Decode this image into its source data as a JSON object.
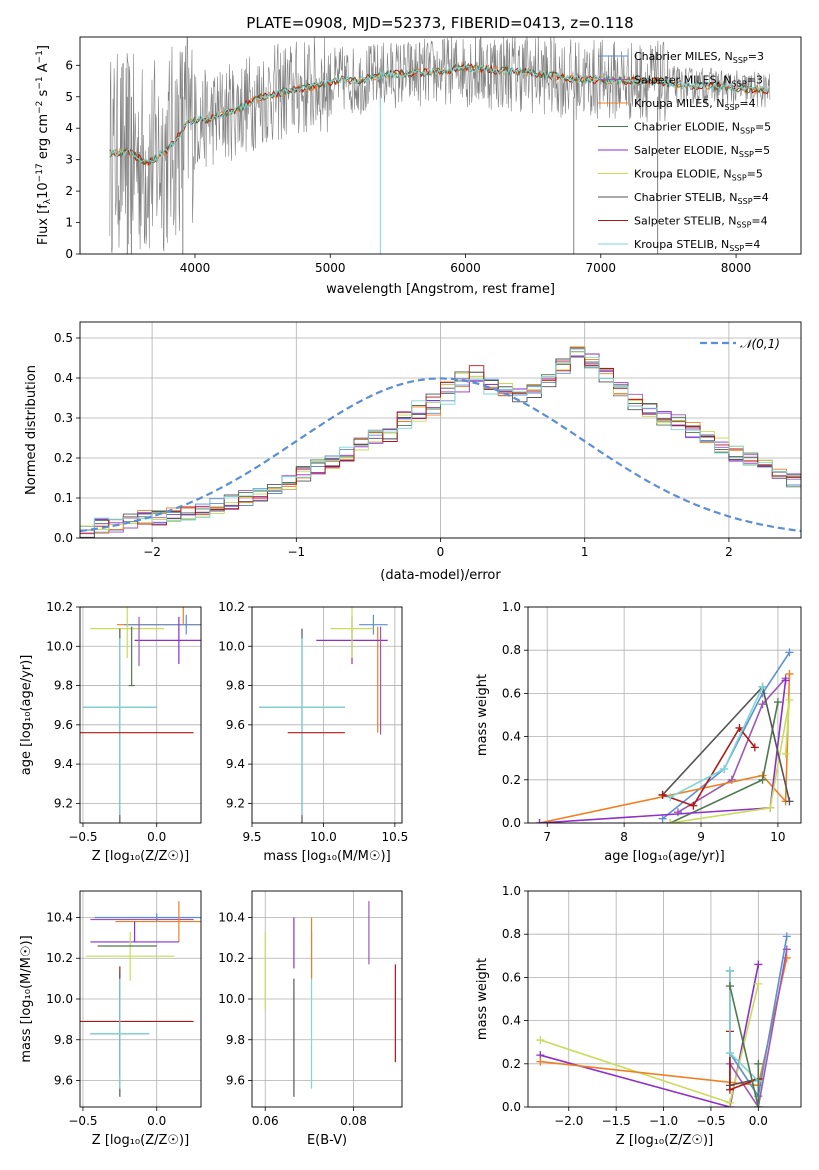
{
  "title": "PLATE=0908, MJD=52373, FIBERID=0413, z=0.118",
  "colors": {
    "Chabrier MILES": "#5b8fd6",
    "Salpeter MILES": "#9b59b6",
    "Kroupa MILES": "#f07f1f",
    "Chabrier ELODIE": "#4e7a4e",
    "Salpeter ELODIE": "#8e2fc9",
    "Kroupa ELODIE": "#c8dc5a",
    "Chabrier STELIB": "#555555",
    "Salpeter STELIB": "#b01818",
    "Kroupa STELIB": "#7fd6d6",
    "gaussian": "#5b8fd6",
    "data": "#808080"
  },
  "chart_data": [
    {
      "id": "spectrum",
      "type": "line",
      "xlabel": "wavelength [Angstrom, rest frame]",
      "ylabel_pre": "Flux [f",
      "ylabel_sub": "λ",
      "ylabel_mid": "10",
      "ylabel_sup1": "−17",
      "ylabel_rest": " erg cm",
      "ylabel_sup2": "−2",
      "ylabel_s": " s",
      "ylabel_sup3": "−1",
      "ylabel_A": " A",
      "ylabel_sup4": "−1",
      "ylabel_end": "]",
      "xlim": [
        3150,
        8480
      ],
      "ylim": [
        0,
        6.9
      ],
      "xticks": [
        4000,
        5000,
        6000,
        7000,
        8000
      ],
      "yticks": [
        0,
        1,
        2,
        3,
        4,
        5,
        6
      ],
      "data_range": [
        3370,
        8250
      ],
      "legend": [
        {
          "name": "Chabrier MILES",
          "n": "3"
        },
        {
          "name": "Salpeter MILES",
          "n": "3"
        },
        {
          "name": "Kroupa MILES",
          "n": "4"
        },
        {
          "name": "Chabrier ELODIE",
          "n": "5"
        },
        {
          "name": "Salpeter ELODIE",
          "n": "5"
        },
        {
          "name": "Kroupa ELODIE",
          "n": "5"
        },
        {
          "name": "Chabrier STELIB",
          "n": "4"
        },
        {
          "name": "Salpeter STELIB",
          "n": "4"
        },
        {
          "name": "Kroupa STELIB",
          "n": "4"
        }
      ],
      "nssp_label": "N",
      "nssp_sub": "SSP",
      "model_anchors": [
        [
          3370,
          3.2
        ],
        [
          3500,
          3.25
        ],
        [
          3650,
          2.9
        ],
        [
          3800,
          3.3
        ],
        [
          3950,
          4.2
        ],
        [
          4100,
          4.3
        ],
        [
          4300,
          4.6
        ],
        [
          4500,
          5.0
        ],
        [
          4700,
          5.2
        ],
        [
          4900,
          5.35
        ],
        [
          5100,
          5.55
        ],
        [
          5200,
          5.5
        ],
        [
          5400,
          5.7
        ],
        [
          5600,
          5.75
        ],
        [
          5800,
          5.8
        ],
        [
          6000,
          5.95
        ],
        [
          6200,
          5.85
        ],
        [
          6400,
          5.8
        ],
        [
          6600,
          5.7
        ],
        [
          6800,
          5.55
        ],
        [
          7000,
          5.55
        ],
        [
          7200,
          5.5
        ],
        [
          7400,
          5.5
        ],
        [
          7600,
          5.35
        ],
        [
          7800,
          5.35
        ],
        [
          8000,
          5.25
        ],
        [
          8250,
          5.2
        ]
      ]
    },
    {
      "id": "residuals",
      "type": "step",
      "xlabel": "(data-model)/error",
      "ylabel": "Normed distribution",
      "xlim": [
        -2.5,
        2.5
      ],
      "ylim": [
        0,
        0.54
      ],
      "xticks": [
        -2,
        -1,
        0,
        1,
        2
      ],
      "yticks": [
        0.0,
        0.1,
        0.2,
        0.3,
        0.4,
        0.5
      ],
      "legend": "𝒩(0,1)",
      "bin_width": 0.1,
      "bin_start": -2.5,
      "hist": [
        0.02,
        0.03,
        0.03,
        0.04,
        0.05,
        0.05,
        0.06,
        0.06,
        0.07,
        0.08,
        0.09,
        0.1,
        0.11,
        0.12,
        0.14,
        0.16,
        0.18,
        0.19,
        0.21,
        0.23,
        0.25,
        0.26,
        0.28,
        0.3,
        0.32,
        0.35,
        0.37,
        0.38,
        0.38,
        0.37,
        0.36,
        0.37,
        0.39,
        0.43,
        0.47,
        0.44,
        0.41,
        0.37,
        0.34,
        0.32,
        0.3,
        0.29,
        0.27,
        0.25,
        0.23,
        0.21,
        0.2,
        0.18,
        0.16,
        0.14,
        0.12,
        0.11,
        0.1,
        0.09,
        0.08,
        0.07,
        0.06,
        0.05,
        0.04,
        0.04,
        0.03,
        0.03,
        0.03,
        0.02,
        0.02,
        0.02,
        0.02,
        0.02,
        0.02,
        0.02,
        0.02,
        0.02,
        0.02,
        0.02,
        0.02,
        0.02,
        0.02,
        0.02,
        0.02,
        0.02
      ]
    },
    {
      "id": "age-z",
      "type": "errorbar",
      "xlabel": "Z [log₁₀(Z/Z☉)]",
      "ylabel": "age  [log₁₀(age/yr)]",
      "xlim": [
        -0.52,
        0.3
      ],
      "ylim": [
        9.1,
        10.2
      ],
      "xticks": [
        -0.5,
        0.0
      ],
      "yticks": [
        9.2,
        9.4,
        9.6,
        9.8,
        10.0,
        10.2
      ],
      "bars": [
        {
          "series": "Kroupa MILES",
          "x": 0.18,
          "xerr": 0.45,
          "y": 10.11,
          "yerr": [
            0.0,
            0.43
          ]
        },
        {
          "series": "Chabrier MILES",
          "x": 0.2,
          "xerr": 0.42,
          "y": 10.11,
          "yerr": [
            0.05,
            0.05
          ]
        },
        {
          "series": "Salpeter ELODIE",
          "x": 0.15,
          "xerr": 0.3,
          "y": 10.03,
          "yerr": [
            0.12,
            0.12
          ]
        },
        {
          "series": "Kroupa ELODIE",
          "x": -0.2,
          "xerr": 0.25,
          "y": 10.09,
          "yerr": [
            0.15,
            0.15
          ]
        },
        {
          "series": "Chabrier STELIB",
          "x": -0.25,
          "xerr": 0.25,
          "y": 9.69,
          "yerr": [
            0.6,
            0.4
          ]
        },
        {
          "series": "Kroupa STELIB",
          "x": -0.25,
          "xerr": 0.25,
          "y": 9.69,
          "yerr": [
            0.55,
            0.35
          ]
        },
        {
          "series": "Salpeter STELIB",
          "x": -0.25,
          "xerr": 0.5,
          "y": 9.56,
          "yerr": [
            0.0,
            0.0
          ]
        },
        {
          "series": "Chabrier ELODIE",
          "x": -0.17,
          "xerr": 0.02,
          "y": 9.8,
          "yerr": [
            0.0,
            0.3
          ]
        },
        {
          "series": "Salpeter MILES",
          "x": -0.12,
          "xerr": 0.0,
          "y": 9.9,
          "yerr": [
            0.0,
            0.25
          ]
        }
      ]
    },
    {
      "id": "age-mass",
      "type": "errorbar",
      "xlabel": "mass [log₁₀(M/M☉)]",
      "xlim": [
        9.5,
        10.55
      ],
      "ylim": [
        9.1,
        10.2
      ],
      "xticks": [
        9.5,
        10.0,
        10.5
      ],
      "yticks": [
        9.2,
        9.4,
        9.6,
        9.8,
        10.0,
        10.2
      ],
      "bars": [
        {
          "series": "Chabrier MILES",
          "x": 10.35,
          "xerr": 0.1,
          "y": 10.11,
          "yerr": [
            0.05,
            0.05
          ]
        },
        {
          "series": "Kroupa MILES",
          "x": 10.38,
          "xerr": 0.0,
          "y": 10.0,
          "yerr": [
            0.44,
            0.1
          ]
        },
        {
          "series": "Salpeter ELODIE",
          "x": 10.2,
          "xerr": 0.25,
          "y": 10.03,
          "yerr": [
            0.12,
            0.12
          ]
        },
        {
          "series": "Kroupa ELODIE",
          "x": 10.2,
          "xerr": 0.15,
          "y": 10.09,
          "yerr": [
            0.15,
            0.15
          ]
        },
        {
          "series": "Chabrier STELIB",
          "x": 9.85,
          "xerr": 0.3,
          "y": 9.69,
          "yerr": [
            0.6,
            0.4
          ]
        },
        {
          "series": "Kroupa STELIB",
          "x": 9.85,
          "xerr": 0.3,
          "y": 9.69,
          "yerr": [
            0.55,
            0.35
          ]
        },
        {
          "series": "Salpeter STELIB",
          "x": 9.95,
          "xerr": 0.2,
          "y": 9.56,
          "yerr": [
            0.0,
            0.0
          ]
        },
        {
          "series": "Salpeter MILES",
          "x": 10.4,
          "xerr": 0.0,
          "y": 10.0,
          "yerr": [
            0.45,
            0.1
          ]
        }
      ]
    },
    {
      "id": "weight-age",
      "type": "line",
      "xlabel": "age  [log₁₀(age/yr)]",
      "ylabel": "mass weight",
      "xlim": [
        6.75,
        10.3
      ],
      "ylim": [
        0,
        1.0
      ],
      "xticks": [
        7,
        8,
        9,
        10
      ],
      "yticks": [
        0.0,
        0.2,
        0.4,
        0.6,
        0.8,
        1.0
      ],
      "series": [
        {
          "series": "Chabrier MILES",
          "x": [
            8.5,
            9.3,
            9.8,
            10.15
          ],
          "y": [
            0.02,
            0.25,
            0.6,
            0.79
          ]
        },
        {
          "series": "Salpeter MILES",
          "x": [
            8.7,
            9.4,
            9.8,
            10.1
          ],
          "y": [
            0.05,
            0.2,
            0.55,
            0.67
          ]
        },
        {
          "series": "Kroupa MILES",
          "x": [
            6.9,
            9.8,
            10.1,
            10.15
          ],
          "y": [
            0.0,
            0.22,
            0.1,
            0.69
          ]
        },
        {
          "series": "Chabrier ELODIE",
          "x": [
            8.6,
            9.8,
            10.0
          ],
          "y": [
            0.0,
            0.2,
            0.56
          ]
        },
        {
          "series": "Salpeter ELODIE",
          "x": [
            6.9,
            9.9,
            10.1
          ],
          "y": [
            0.0,
            0.07,
            0.66
          ]
        },
        {
          "series": "Kroupa ELODIE",
          "x": [
            8.6,
            9.9,
            10.15,
            10.1
          ],
          "y": [
            0.0,
            0.07,
            0.57,
            0.32
          ]
        },
        {
          "series": "Chabrier STELIB",
          "x": [
            8.5,
            9.8,
            10.15
          ],
          "y": [
            0.13,
            0.63,
            0.1
          ]
        },
        {
          "series": "Salpeter STELIB",
          "x": [
            8.5,
            8.9,
            9.5,
            9.7
          ],
          "y": [
            0.13,
            0.08,
            0.44,
            0.35
          ]
        },
        {
          "series": "Kroupa STELIB",
          "x": [
            8.6,
            9.3,
            9.8
          ],
          "y": [
            0.12,
            0.25,
            0.63
          ]
        }
      ]
    },
    {
      "id": "mass-z",
      "type": "errorbar",
      "xlabel": "Z [log₁₀(Z/Z☉)]",
      "ylabel": "mass [log₁₀(M/M☉)]",
      "xlim": [
        -0.52,
        0.3
      ],
      "ylim": [
        9.47,
        10.53
      ],
      "xticks": [
        -0.5,
        0.0
      ],
      "yticks": [
        9.6,
        9.8,
        10.0,
        10.2,
        10.4
      ],
      "bars": [
        {
          "series": "Chabrier MILES",
          "x": 0.0,
          "xerr": 0.42,
          "y": 10.4,
          "yerr": [
            0.02,
            0.02
          ]
        },
        {
          "series": "Salpeter MILES",
          "x": -0.1,
          "xerr": 0.35,
          "y": 10.39,
          "yerr": [
            0.0,
            0.0
          ]
        },
        {
          "series": "Kroupa MILES",
          "x": 0.15,
          "xerr": 0.43,
          "y": 10.38,
          "yerr": [
            0.1,
            0.1
          ]
        },
        {
          "series": "Salpeter ELODIE",
          "x": -0.15,
          "xerr": 0.3,
          "y": 10.28,
          "yerr": [
            0.0,
            0.1
          ]
        },
        {
          "series": "Kroupa ELODIE",
          "x": -0.18,
          "xerr": 0.3,
          "y": 10.21,
          "yerr": [
            0.12,
            0.12
          ]
        },
        {
          "series": "Chabrier ELODIE",
          "x": -0.2,
          "xerr": 0.2,
          "y": 10.26,
          "yerr": [
            0.0,
            0.0
          ]
        },
        {
          "series": "Salpeter STELIB",
          "x": -0.25,
          "xerr": 0.5,
          "y": 9.89,
          "yerr": [
            0.27,
            0.27
          ]
        },
        {
          "series": "Chabrier STELIB",
          "x": -0.25,
          "xerr": 0.2,
          "y": 9.83,
          "yerr": [
            0.31,
            0.31
          ]
        },
        {
          "series": "Kroupa STELIB",
          "x": -0.25,
          "xerr": 0.2,
          "y": 9.83,
          "yerr": [
            0.27,
            0.27
          ]
        }
      ]
    },
    {
      "id": "mass-ebv",
      "type": "errorbar",
      "xlabel": "E(B-V)",
      "xlim": [
        0.057,
        0.091
      ],
      "ylim": [
        9.47,
        10.53
      ],
      "xticks": [
        0.06,
        0.08
      ],
      "yticks": [
        9.6,
        9.8,
        10.0,
        10.2,
        10.4
      ],
      "bars": [
        {
          "series": "Kroupa ELODIE",
          "x": 0.06,
          "y": 10.15,
          "yerr": [
            0.2,
            0.18
          ]
        },
        {
          "series": "Chabrier STELIB",
          "x": 0.0665,
          "y": 9.9,
          "yerr": [
            0.38,
            0.2
          ]
        },
        {
          "series": "Salpeter ELODIE",
          "x": 0.0665,
          "y": 10.15,
          "yerr": [
            0.0,
            0.25
          ]
        },
        {
          "series": "Kroupa STELIB",
          "x": 0.0705,
          "y": 9.83,
          "yerr": [
            0.27,
            0.5
          ]
        },
        {
          "series": "Kroupa MILES",
          "x": 0.0705,
          "y": 10.3,
          "yerr": [
            0.2,
            0.1
          ]
        },
        {
          "series": "Salpeter MILES",
          "x": 0.0835,
          "y": 10.33,
          "yerr": [
            0.16,
            0.15
          ]
        },
        {
          "series": "Salpeter STELIB",
          "x": 0.0895,
          "y": 9.93,
          "yerr": [
            0.24,
            0.24
          ]
        }
      ]
    },
    {
      "id": "weight-z",
      "type": "line",
      "xlabel": "Z [log₁₀(Z/Z☉)]",
      "ylabel": "mass weight",
      "xlim": [
        -2.43,
        0.45
      ],
      "ylim": [
        0,
        1.0
      ],
      "xticks": [
        -2.0,
        -1.5,
        -1.0,
        -0.5,
        0.0
      ],
      "yticks": [
        0.0,
        0.2,
        0.4,
        0.6,
        0.8,
        1.0
      ],
      "series": [
        {
          "series": "Salpeter ELODIE",
          "x": [
            -2.3,
            -0.3,
            0.0
          ],
          "y": [
            0.24,
            0.0,
            0.66
          ]
        },
        {
          "series": "Kroupa ELODIE",
          "x": [
            -2.3,
            -0.3,
            0.0
          ],
          "y": [
            0.31,
            0.02,
            0.57
          ]
        },
        {
          "series": "Kroupa MILES",
          "x": [
            -2.3,
            0.0,
            0.3
          ],
          "y": [
            0.21,
            0.1,
            0.69
          ]
        },
        {
          "series": "Chabrier MILES",
          "x": [
            -0.3,
            0.0,
            0.3
          ],
          "y": [
            0.25,
            0.05,
            0.79
          ]
        },
        {
          "series": "Salpeter MILES",
          "x": [
            -0.3,
            0.0,
            0.3
          ],
          "y": [
            0.2,
            0.0,
            0.73
          ]
        },
        {
          "series": "Chabrier STELIB",
          "x": [
            -0.3,
            -0.3,
            0.0
          ],
          "y": [
            0.63,
            0.1,
            0.13
          ]
        },
        {
          "series": "Salpeter STELIB",
          "x": [
            -0.3,
            -0.3,
            0.0
          ],
          "y": [
            0.35,
            0.08,
            0.13
          ]
        },
        {
          "series": "Kroupa STELIB",
          "x": [
            -0.3,
            -0.3,
            0.0
          ],
          "y": [
            0.63,
            0.25,
            0.12
          ]
        },
        {
          "series": "Chabrier ELODIE",
          "x": [
            -0.3,
            0.0,
            0.0
          ],
          "y": [
            0.56,
            0.0,
            0.2
          ]
        }
      ]
    }
  ]
}
